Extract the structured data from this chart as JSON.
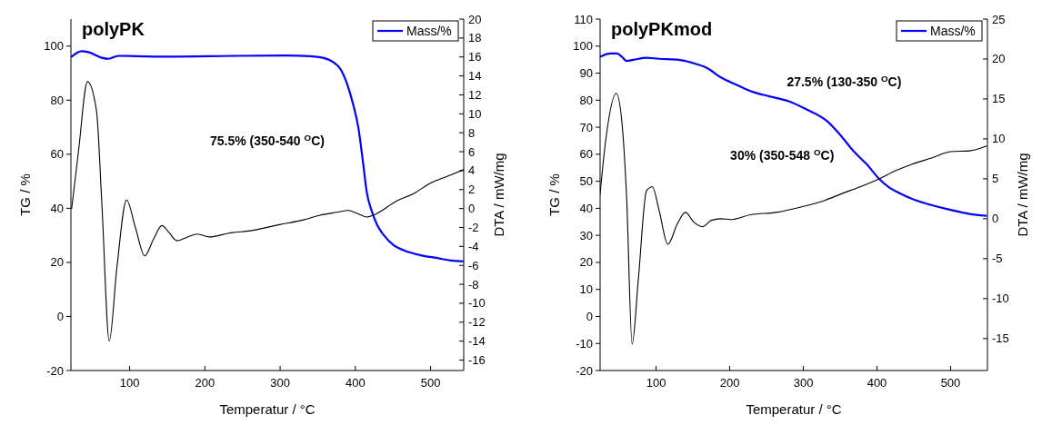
{
  "chart_data": [
    {
      "type": "line",
      "title": "polyPK",
      "xlabel": "Temperatur / °C",
      "ylabel": "TG / %",
      "y2label": "DTA / mW/mg",
      "annotations": [
        "75.5% (350-540 $^{O}$C)"
      ],
      "legend": "top right",
      "xlim": [
        22,
        544
      ],
      "xticks": [
        100,
        200,
        300,
        400,
        500
      ],
      "ylim": [
        -20,
        110
      ],
      "yticks": [
        -20,
        0,
        20,
        40,
        60,
        80,
        100
      ],
      "y2lim": [
        -17.1,
        20
      ],
      "y2ticks": [
        -16,
        -14,
        -12,
        -10,
        -8,
        -6,
        -4,
        -2,
        0,
        2,
        4,
        6,
        8,
        10,
        12,
        14,
        16,
        18,
        20
      ],
      "series": [
        {
          "name": "Mass/%",
          "color": "#0000ff",
          "x": [
            23,
            36,
            45,
            63,
            72,
            85,
            108,
            152,
            241,
            308,
            340,
            357,
            371,
            380,
            389,
            397,
            404,
            410,
            415,
            422,
            429,
            438,
            451,
            464,
            487,
            509,
            527,
            544
          ],
          "values": [
            96.1,
            98.1,
            97.8,
            95.7,
            95.3,
            96.4,
            96.3,
            96.1,
            96.4,
            96.5,
            96.3,
            95.7,
            94.0,
            91.6,
            86,
            78.5,
            69.8,
            57.4,
            46.2,
            38.8,
            33.8,
            30,
            26.3,
            24.5,
            22.6,
            21.6,
            20.7,
            20.4
          ]
        },
        {
          "color": "#000000",
          "axis": "y2",
          "x": [
            23,
            32,
            44,
            56,
            63,
            73,
            83,
            96,
            108,
            120,
            132,
            143,
            152,
            163,
            177,
            190,
            206,
            232,
            264,
            299,
            331,
            353,
            375,
            391,
            402,
            415,
            424,
            455,
            478,
            500,
            522,
            544
          ],
          "values": [
            0.0,
            6.0,
            13.4,
            10.3,
            0.7,
            -14.0,
            -6.3,
            0.9,
            -2.1,
            -5.0,
            -3.2,
            -1.8,
            -2.5,
            -3.4,
            -3.0,
            -2.7,
            -3.0,
            -2.6,
            -2.3,
            -1.7,
            -1.2,
            -0.7,
            -0.4,
            -0.2,
            -0.5,
            -0.9,
            -0.7,
            0.8,
            1.6,
            2.7,
            3.4,
            4.1
          ]
        }
      ]
    },
    {
      "type": "line",
      "title": "polyPKmod",
      "xlabel": "Temperatur / °C",
      "ylabel": "TG / %",
      "y2label": "DTA / mW/mg",
      "annotations": [
        "27.5% (130-350 $^{O}$C)",
        "30% (350-548 $^{O}$C)"
      ],
      "legend": "top right",
      "xlim": [
        24,
        550
      ],
      "xticks": [
        100,
        200,
        300,
        400,
        500
      ],
      "ylim": [
        -20,
        110
      ],
      "yticks": [
        -20,
        -10,
        0,
        10,
        20,
        30,
        40,
        50,
        60,
        70,
        80,
        90,
        100,
        110
      ],
      "y2lim": [
        -19,
        25
      ],
      "y2ticks": [
        -15,
        -10,
        -5,
        0,
        5,
        10,
        15,
        20,
        25
      ],
      "series": [
        {
          "name": "Mass/%",
          "color": "#0000ff",
          "x": [
            24,
            38.5,
            47,
            54,
            60,
            69,
            87,
            104,
            131,
            148,
            170,
            188,
            210,
            232,
            254,
            280,
            302,
            333,
            350,
            368,
            386,
            403,
            416,
            430,
            447,
            474,
            500,
            526,
            548
          ],
          "values": [
            96.1,
            97.3,
            97.3,
            95.9,
            94.5,
            94.9,
            95.7,
            95.3,
            94.9,
            93.9,
            91.8,
            88.4,
            85.6,
            83,
            81.4,
            79.6,
            76.9,
            72.1,
            67.2,
            61.2,
            56.3,
            50.9,
            47.8,
            45.7,
            43.6,
            41.2,
            39.4,
            37.9,
            37.2
          ]
        },
        {
          "color": "#000000",
          "axis": "y2",
          "x": [
            24,
            32,
            46,
            54,
            60,
            67.5,
            76,
            87,
            95,
            104,
            116,
            129,
            140,
            151,
            163,
            175,
            188,
            201,
            228,
            263,
            298,
            329,
            351,
            377,
            403,
            425,
            447,
            474,
            500,
            526,
            549
          ],
          "values": [
            3.1,
            10.1,
            15.7,
            11.7,
            2.7,
            -15.7,
            -7.5,
            3.5,
            4.0,
            1.1,
            -3.2,
            -0.6,
            0.8,
            -0.4,
            -1.0,
            -0.2,
            0.0,
            -0.1,
            0.5,
            0.8,
            1.5,
            2.3,
            3.1,
            4.0,
            5.0,
            6.0,
            6.8,
            7.6,
            8.4,
            8.5,
            9.1
          ]
        }
      ]
    }
  ]
}
